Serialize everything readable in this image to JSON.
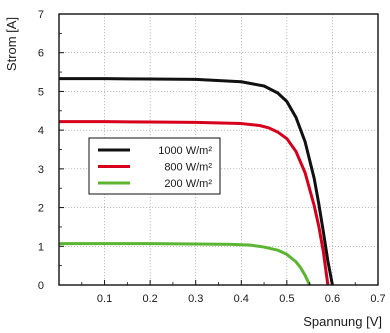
{
  "chart_data": {
    "type": "line",
    "xlabel": "Spannung [V]",
    "ylabel": "Strom [A]",
    "xlim": [
      0,
      0.7
    ],
    "ylim": [
      0,
      7
    ],
    "x_ticks": [
      {
        "value": 0.1,
        "label": "0.1"
      },
      {
        "value": 0.2,
        "label": "0.2"
      },
      {
        "value": 0.3,
        "label": "0.3"
      },
      {
        "value": 0.4,
        "label": "0.4"
      },
      {
        "value": 0.5,
        "label": "0.5"
      },
      {
        "value": 0.6,
        "label": "0.6"
      },
      {
        "value": 0.7,
        "label": "0.7"
      }
    ],
    "y_ticks": [
      {
        "value": 0,
        "label": "0"
      },
      {
        "value": 1,
        "label": "1"
      },
      {
        "value": 2,
        "label": "2"
      },
      {
        "value": 3,
        "label": "3"
      },
      {
        "value": 4,
        "label": "4"
      },
      {
        "value": 5,
        "label": "5"
      },
      {
        "value": 6,
        "label": "6"
      },
      {
        "value": 7,
        "label": "7"
      }
    ],
    "grid": true,
    "legend_position": "center-left",
    "series": [
      {
        "name": "1000 W/m²",
        "color": "#111111",
        "x": [
          0.0,
          0.1,
          0.2,
          0.3,
          0.4,
          0.45,
          0.48,
          0.5,
          0.52,
          0.54,
          0.56,
          0.57,
          0.58,
          0.59,
          0.6
        ],
        "y": [
          5.33,
          5.33,
          5.32,
          5.31,
          5.25,
          5.14,
          4.96,
          4.74,
          4.33,
          3.7,
          2.75,
          2.1,
          1.38,
          0.62,
          0.0
        ]
      },
      {
        "name": "800 W/m²",
        "color": "#d6001c",
        "x": [
          0.0,
          0.1,
          0.2,
          0.3,
          0.4,
          0.44,
          0.46,
          0.48,
          0.5,
          0.52,
          0.54,
          0.56,
          0.57,
          0.58,
          0.59
        ],
        "y": [
          4.22,
          4.22,
          4.21,
          4.2,
          4.17,
          4.12,
          4.06,
          3.95,
          3.78,
          3.45,
          2.9,
          2.05,
          1.52,
          0.87,
          0.0
        ]
      },
      {
        "name": "200 W/m²",
        "color": "#5cb531",
        "x": [
          0.0,
          0.1,
          0.2,
          0.3,
          0.38,
          0.42,
          0.45,
          0.48,
          0.5,
          0.52,
          0.53,
          0.54,
          0.55
        ],
        "y": [
          1.07,
          1.07,
          1.07,
          1.06,
          1.05,
          1.03,
          0.98,
          0.9,
          0.79,
          0.6,
          0.45,
          0.25,
          0.0
        ]
      }
    ]
  }
}
